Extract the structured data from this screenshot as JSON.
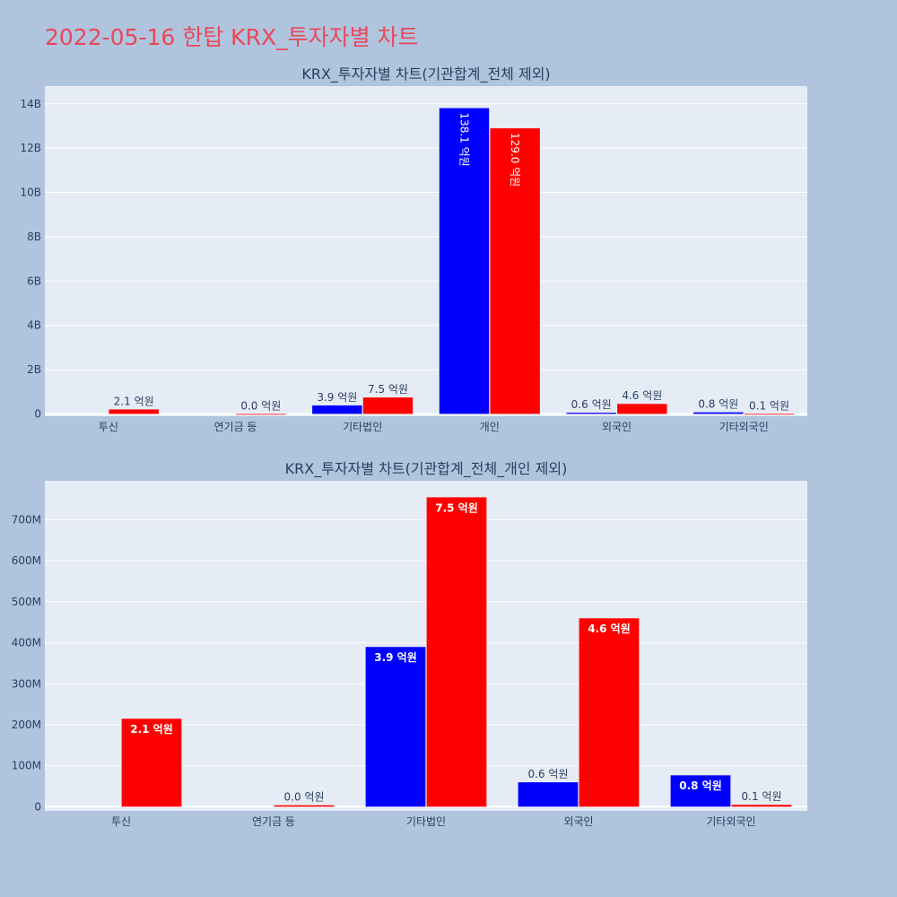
{
  "page": {
    "title": "2022-05-16 한탑 KRX_투자자별 차트",
    "background": "#b0c4de",
    "title_color": "#e8485a"
  },
  "colors": {
    "plot_bg": "#e5ecf6",
    "grid": "#ffffff",
    "text": "#2a3f5f",
    "buy": "#0000ff",
    "sell": "#ff0000"
  },
  "chart_data": [
    {
      "type": "bar",
      "title": "KRX_투자자별 차트(기관합계_전체 제외)",
      "categories": [
        "투신",
        "연기금 등",
        "기타법인",
        "개인",
        "외국인",
        "기타외국인"
      ],
      "series": [
        {
          "color": "#0000ff",
          "values": [
            0,
            0,
            390000000,
            13810000000,
            60000000,
            80000000
          ],
          "labels": [
            "",
            "",
            "3.9 억원",
            "138.1 억원",
            "0.6 억원",
            "0.8 억원"
          ]
        },
        {
          "color": "#ff0000",
          "values": [
            210000000,
            5000000,
            750000000,
            12900000000,
            460000000,
            10000000
          ],
          "labels": [
            "2.1 억원",
            "0.0 억원",
            "7.5 억원",
            "129.0 억원",
            "4.6 억원",
            "0.1 억원"
          ]
        }
      ],
      "yticks": [
        0,
        2000000000,
        4000000000,
        6000000000,
        8000000000,
        10000000000,
        12000000000,
        14000000000
      ],
      "ytick_labels": [
        "0",
        "2B",
        "4B",
        "6B",
        "8B",
        "10B",
        "12B",
        "14B"
      ],
      "ylim": [
        -100000000,
        14800000000
      ],
      "grid": true,
      "barmode": "group"
    },
    {
      "type": "bar",
      "title": "KRX_투자자별 차트(기관합계_전체_개인 제외)",
      "categories": [
        "투신",
        "연기금 등",
        "기타법인",
        "외국인",
        "기타외국인"
      ],
      "series": [
        {
          "color": "#0000ff",
          "values": [
            0,
            0,
            390000000,
            60000000,
            77000000
          ],
          "labels": [
            "",
            "",
            "3.9 억원",
            "0.6 억원",
            "0.8 억원"
          ]
        },
        {
          "color": "#ff0000",
          "values": [
            215000000,
            4000000,
            755000000,
            460000000,
            5000000
          ],
          "labels": [
            "2.1 억원",
            "0.0 억원",
            "7.5 억원",
            "4.6 억원",
            "0.1 억원"
          ]
        }
      ],
      "yticks": [
        0,
        100000000,
        200000000,
        300000000,
        400000000,
        500000000,
        600000000,
        700000000
      ],
      "ytick_labels": [
        "0",
        "100M",
        "200M",
        "300M",
        "400M",
        "500M",
        "600M",
        "700M"
      ],
      "ylim": [
        -10000000,
        795000000
      ],
      "grid": true,
      "barmode": "group"
    }
  ]
}
